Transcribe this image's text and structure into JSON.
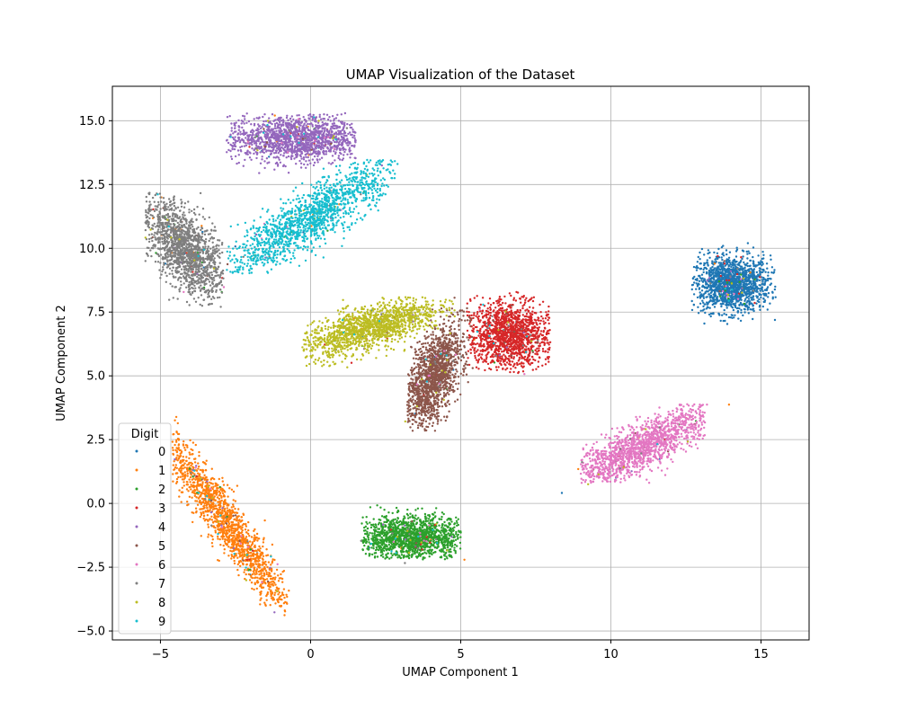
{
  "chart_data": {
    "type": "scatter",
    "title": "UMAP Visualization of the Dataset",
    "xlabel": "UMAP Component 1",
    "ylabel": "UMAP Component 2",
    "xlim": [
      -6.6,
      16.6
    ],
    "ylim": [
      -5.35,
      16.35
    ],
    "x_ticks": [
      -5,
      0,
      5,
      10,
      15
    ],
    "y_ticks": [
      -5.0,
      -2.5,
      0.0,
      2.5,
      5.0,
      7.5,
      10.0,
      12.5,
      15.0
    ],
    "x_tick_labels": [
      "−5",
      "0",
      "5",
      "10",
      "15"
    ],
    "y_tick_labels": [
      "−5.0",
      "−2.5",
      "0.0",
      "2.5",
      "5.0",
      "7.5",
      "10.0",
      "12.5",
      "15.0"
    ],
    "grid": true,
    "legend": {
      "title": "Digit",
      "position": "lower-left"
    },
    "series": [
      {
        "name": "0",
        "color": "#1f77b4",
        "clusters": [
          {
            "center": [
              14.0,
              8.6
            ],
            "spread": [
              0.65,
              0.55
            ],
            "angle": 0,
            "extent": [
              12.7,
              15.5,
              7.0,
              10.4
            ]
          }
        ]
      },
      {
        "name": "1",
        "color": "#ff7f0e",
        "clusters": [
          {
            "center": [
              -2.9,
              -0.6
            ],
            "spread": [
              2.1,
              0.32
            ],
            "angle": -59,
            "extent": [
              -4.6,
              -0.7,
              -4.4,
              3.4
            ]
          }
        ]
      },
      {
        "name": "2",
        "color": "#2ca02c",
        "clusters": [
          {
            "center": [
              3.4,
              -1.35
            ],
            "spread": [
              0.95,
              0.42
            ],
            "angle": 0,
            "extent": [
              1.7,
              5.0,
              -2.2,
              0.7
            ]
          }
        ]
      },
      {
        "name": "3",
        "color": "#d62728",
        "clusters": [
          {
            "center": [
              6.6,
              6.6
            ],
            "spread": [
              0.7,
              0.65
            ],
            "angle": -20,
            "extent": [
              5.2,
              8.0,
              5.1,
              8.3
            ]
          }
        ]
      },
      {
        "name": "4",
        "color": "#9467bd",
        "clusters": [
          {
            "center": [
              -0.5,
              14.3
            ],
            "spread": [
              1.15,
              0.45
            ],
            "angle": 0,
            "extent": [
              -2.8,
              1.5,
              12.5,
              15.3
            ]
          }
        ]
      },
      {
        "name": "5",
        "color": "#8c564b",
        "clusters": [
          {
            "center": [
              4.1,
              5.0
            ],
            "spread": [
              1.05,
              0.38
            ],
            "angle": 73,
            "extent": [
              3.2,
              5.4,
              2.8,
              8.2
            ]
          }
        ]
      },
      {
        "name": "6",
        "color": "#e377c2",
        "clusters": [
          {
            "center": [
              11.0,
              2.2
            ],
            "spread": [
              1.5,
              0.4
            ],
            "angle": 32,
            "extent": [
              9.0,
              13.2,
              0.8,
              3.9
            ]
          }
        ]
      },
      {
        "name": "7",
        "color": "#7f7f7f",
        "clusters": [
          {
            "center": [
              -4.2,
              10.0
            ],
            "spread": [
              1.05,
              0.5
            ],
            "angle": -62,
            "extent": [
              -5.5,
              -2.9,
              7.7,
              12.2
            ]
          }
        ]
      },
      {
        "name": "8",
        "color": "#bcbd22",
        "clusters": [
          {
            "center": [
              2.0,
              6.9
            ],
            "spread": [
              1.2,
              0.4
            ],
            "angle": 20,
            "extent": [
              -0.3,
              4.8,
              5.2,
              8.1
            ]
          }
        ]
      },
      {
        "name": "9",
        "color": "#17becf",
        "clusters": [
          {
            "center": [
              0.0,
              11.2
            ],
            "spread": [
              1.85,
              0.45
            ],
            "angle": 38,
            "extent": [
              -2.8,
              2.9,
              9.0,
              13.5
            ]
          }
        ]
      }
    ]
  }
}
